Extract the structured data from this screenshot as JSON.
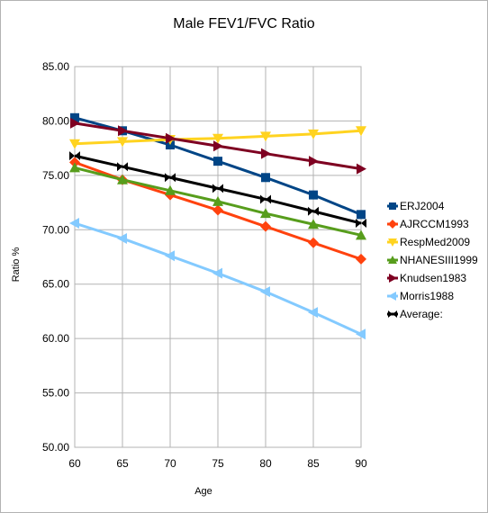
{
  "chart_data": {
    "type": "line",
    "title": "Male FEV1/FVC Ratio",
    "xlabel": "Age",
    "ylabel": "Ratio %",
    "x": [
      60,
      65,
      70,
      75,
      80,
      85,
      90
    ],
    "xlim": [
      60,
      90
    ],
    "ylim": [
      50,
      85
    ],
    "yticks": [
      "50.00",
      "55.00",
      "60.00",
      "65.00",
      "70.00",
      "75.00",
      "80.00",
      "85.00"
    ],
    "xticks": [
      "60",
      "65",
      "70",
      "75",
      "80",
      "85",
      "90"
    ],
    "grid": true,
    "legend_position": "right",
    "series": [
      {
        "name": "ERJ2004",
        "color": "#004586",
        "marker": "square",
        "values": [
          80.3,
          79.1,
          77.8,
          76.3,
          74.8,
          73.2,
          71.4
        ]
      },
      {
        "name": "AJRCCM1993",
        "color": "#ff420e",
        "marker": "diamond",
        "values": [
          76.2,
          74.6,
          73.2,
          71.8,
          70.3,
          68.8,
          67.3
        ]
      },
      {
        "name": "RespMed2009",
        "color": "#ffd320",
        "marker": "triangle-down",
        "values": [
          77.9,
          78.1,
          78.3,
          78.4,
          78.6,
          78.8,
          79.1
        ]
      },
      {
        "name": "NHANESIII1999",
        "color": "#579d1c",
        "marker": "triangle-up",
        "values": [
          75.7,
          74.6,
          73.6,
          72.6,
          71.5,
          70.5,
          69.5
        ]
      },
      {
        "name": "Knudsen1983",
        "color": "#7e0021",
        "marker": "triangle-right",
        "values": [
          79.8,
          79.1,
          78.4,
          77.7,
          77.0,
          76.3,
          75.6
        ]
      },
      {
        "name": "Morris1988",
        "color": "#83caff",
        "marker": "triangle-left",
        "values": [
          70.6,
          69.2,
          67.6,
          66.0,
          64.3,
          62.4,
          60.4
        ]
      },
      {
        "name": "Average:",
        "color": "#000000",
        "marker": "bowtie",
        "values": [
          76.8,
          75.8,
          74.8,
          73.8,
          72.8,
          71.7,
          70.6
        ]
      }
    ]
  }
}
